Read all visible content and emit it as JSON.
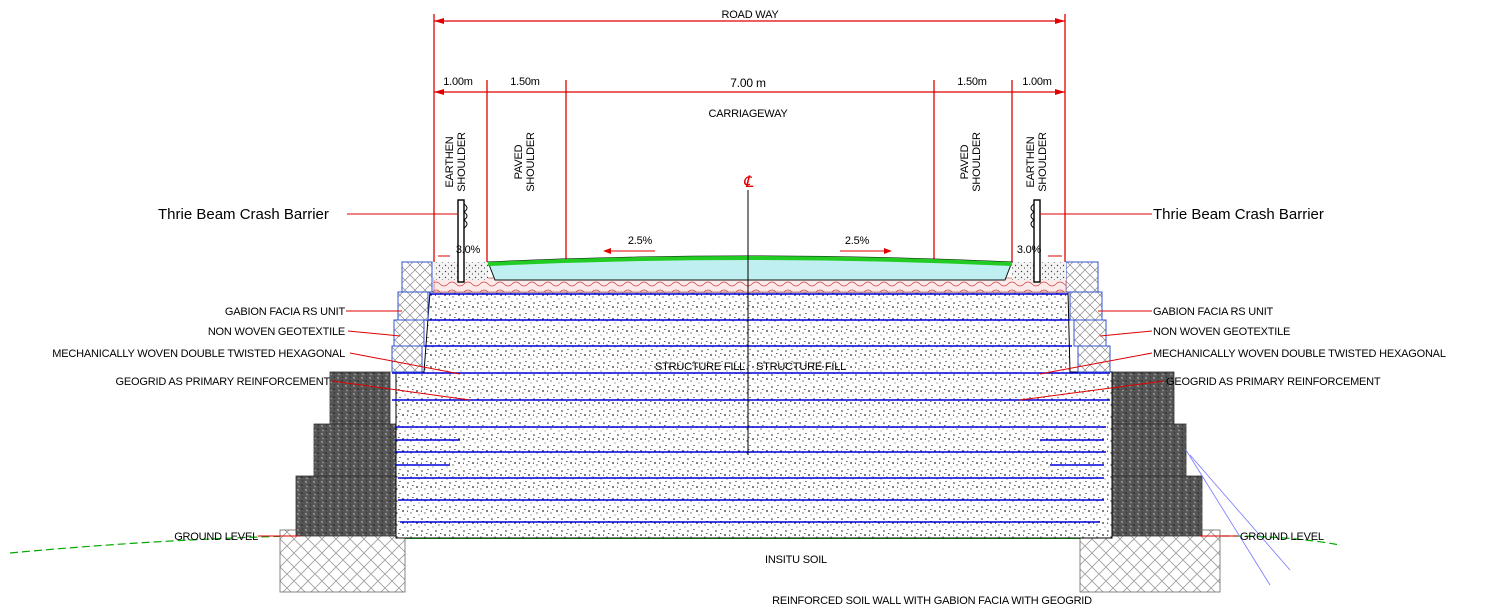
{
  "title": "ROAD WAY",
  "caption": "REINFORCED SOIL WALL WITH GABION FACIA WITH GEOGRID",
  "dimensions": {
    "left_earthen": "1.00m",
    "left_paved": "1.50m",
    "carriageway": "7.00 m",
    "right_paved": "1.50m",
    "right_earthen": "1.00m"
  },
  "labels": {
    "carriageway": "CARRIAGEWAY",
    "earthen_shoulder_line1": "EARTHEN",
    "earthen_shoulder_line2": "SHOULDER",
    "paved_shoulder_line1": "PAVED",
    "paved_shoulder_line2": "SHOULDER",
    "centerline": "℄",
    "left_camber": "2.5%",
    "right_camber": "2.5%",
    "left_slope": "3.0%",
    "right_slope": "3.0%",
    "structure_fill_left": "STRUCTURE FILL",
    "structure_fill_right": "STRUCTURE FILL",
    "insitu_soil": "INSITU SOIL"
  },
  "left_callouts": {
    "crash_barrier": "Thrie Beam Crash Barrier",
    "gabion": "GABION FACIA RS UNIT",
    "geotextile": "NON WOVEN GEOTEXTILE",
    "hexagonal": "MECHANICALLY WOVEN DOUBLE TWISTED HEXAGONAL",
    "geogrid": "GEOGRID AS PRIMARY REINFORCEMENT",
    "ground": "GROUND LEVEL"
  },
  "right_callouts": {
    "crash_barrier": "Thrie Beam Crash Barrier",
    "gabion": "GABION FACIA RS UNIT",
    "geotextile": "NON WOVEN GEOTEXTILE",
    "hexagonal": "MECHANICALLY WOVEN DOUBLE TWISTED HEXAGONAL",
    "geogrid": "GEOGRID AS PRIMARY REINFORCEMENT",
    "ground": "GROUND LEVEL"
  },
  "colors": {
    "dimension": "#e00000",
    "geogrid": "#0000dd",
    "ground": "#00aa00",
    "pavement": "#22cc22"
  }
}
